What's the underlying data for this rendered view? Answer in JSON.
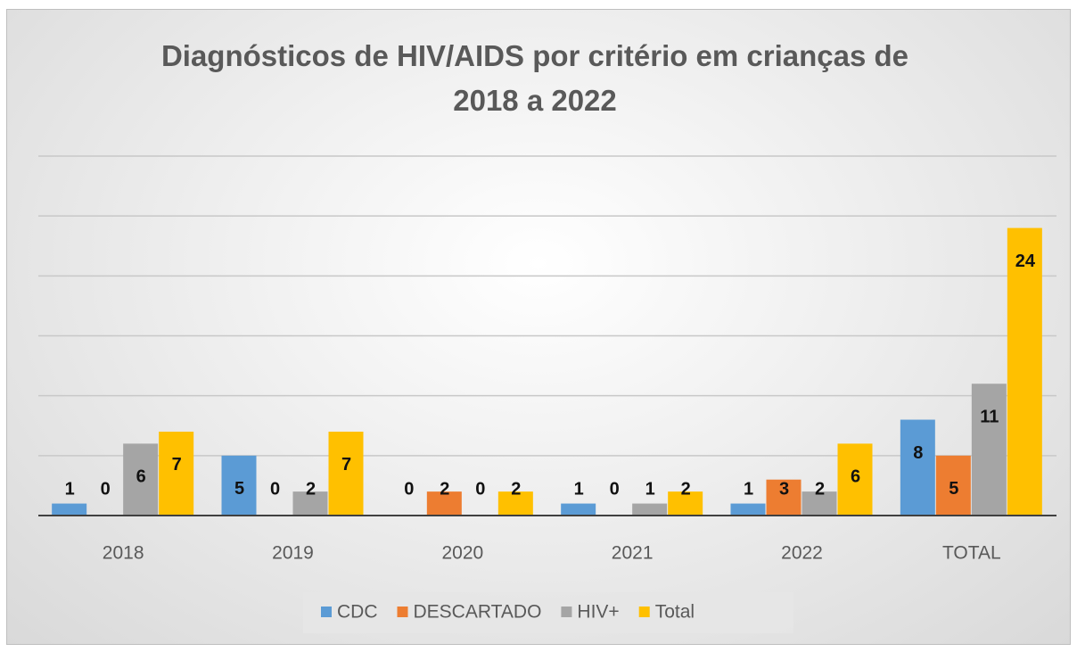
{
  "chart_data": {
    "type": "bar",
    "title": "Diagnósticos de HIV/AIDS por critério em crianças de 2018 a 2022",
    "categories": [
      "2018",
      "2019",
      "2020",
      "2021",
      "2022",
      "TOTAL"
    ],
    "series": [
      {
        "name": "CDC",
        "color": "#5b9bd5",
        "values": [
          1,
          5,
          0,
          1,
          1,
          8
        ]
      },
      {
        "name": "DESCARTADO",
        "color": "#ed7d31",
        "values": [
          0,
          0,
          2,
          0,
          3,
          5
        ]
      },
      {
        "name": "HIV+",
        "color": "#a5a5a5",
        "values": [
          6,
          2,
          0,
          1,
          2,
          11
        ]
      },
      {
        "name": "Total",
        "color": "#ffc000",
        "values": [
          7,
          7,
          2,
          2,
          6,
          24
        ]
      }
    ],
    "ylim": [
      0,
      30
    ],
    "yticks": [
      0,
      5,
      10,
      15,
      20,
      25,
      30
    ],
    "grid": true,
    "legend": "bottom"
  }
}
